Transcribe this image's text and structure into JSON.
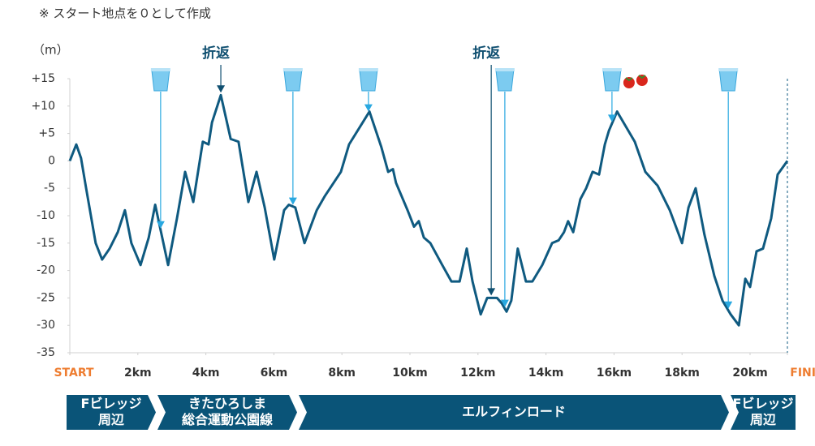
{
  "chart_data": {
    "type": "line",
    "note": "※ スタート地点を０として作成",
    "y_label": "（m）",
    "color": "#0f5a80",
    "x": [
      0,
      0.19,
      0.33,
      0.48,
      0.62,
      0.76,
      0.95,
      1.17,
      1.41,
      1.62,
      1.81,
      2.08,
      2.32,
      2.51,
      2.7,
      2.89,
      3.15,
      3.39,
      3.63,
      3.91,
      4.08,
      4.18,
      4.44,
      4.73,
      4.96,
      5.25,
      5.49,
      5.73,
      6.01,
      6.3,
      6.44,
      6.63,
      6.9,
      7.26,
      7.49,
      7.97,
      8.21,
      8.81,
      9.16,
      9.36,
      9.5,
      9.59,
      9.93,
      10.12,
      10.26,
      10.41,
      10.6,
      10.95,
      11.22,
      11.46,
      11.67,
      11.84,
      12.08,
      12.27,
      12.56,
      12.7,
      12.84,
      12.98,
      13.17,
      13.41,
      13.6,
      13.89,
      14.18,
      14.37,
      14.53,
      14.65,
      14.8,
      15.01,
      15.18,
      15.37,
      15.56,
      15.73,
      15.85,
      16.09,
      16.61,
      16.92,
      17.28,
      17.64,
      18,
      18.19,
      18.4,
      18.66,
      18.95,
      19.19,
      19.43,
      19.67,
      19.86,
      20,
      20.19,
      20.38,
      20.62,
      20.81,
      21.0975
    ],
    "values": [
      0,
      3,
      0.5,
      -5,
      -10,
      -15,
      -18,
      -16,
      -13,
      -9,
      -15,
      -19,
      -14,
      -8,
      -13.5,
      -19,
      -10.5,
      -2,
      -7.5,
      3.5,
      3,
      7,
      12,
      4,
      3.5,
      -7.5,
      -2,
      -8.5,
      -18,
      -9,
      -8,
      -8.5,
      -15,
      -9,
      -6.5,
      -2,
      3,
      9,
      2.5,
      -2,
      -1.5,
      -4,
      -9,
      -12,
      -11,
      -14,
      -15,
      -19,
      -22,
      -22,
      -16,
      -22,
      -28,
      -25,
      -25,
      -26,
      -27.5,
      -25.5,
      -16,
      -22,
      -22,
      -19,
      -15,
      -14.5,
      -13,
      -11,
      -13,
      -7,
      -5,
      -2,
      -2.5,
      3,
      5.5,
      9,
      3.5,
      -2,
      -4.5,
      -9,
      -15,
      -8.5,
      -5,
      -13.5,
      -21,
      -25.5,
      -28,
      -30,
      -21.5,
      -23,
      -16.5,
      -16,
      -10.5,
      -2.5,
      0
    ],
    "xlim": [
      0,
      21.0975
    ],
    "ylim": [
      -35,
      15
    ],
    "yticks": [
      {
        "value": 15,
        "label": "+15"
      },
      {
        "value": 10,
        "label": "+10"
      },
      {
        "value": 5,
        "label": "+5"
      },
      0,
      -5,
      -10,
      -15,
      -20,
      -25,
      -30,
      -35
    ],
    "xticks": [
      {
        "value": 0,
        "label": "START"
      },
      {
        "value": 2,
        "label": "2km"
      },
      {
        "value": 4,
        "label": "4km"
      },
      {
        "value": 6,
        "label": "6km"
      },
      {
        "value": 8,
        "label": "8km"
      },
      {
        "value": 10,
        "label": "10km"
      },
      {
        "value": 12,
        "label": "12km"
      },
      {
        "value": 14,
        "label": "14km"
      },
      {
        "value": 16,
        "label": "16km"
      },
      {
        "value": 18,
        "label": "18km"
      },
      {
        "value": 20,
        "label": "20km"
      },
      {
        "value": 21.0975,
        "label": "FINISH"
      }
    ],
    "water_stations": [
      2.67,
      6.56,
      8.78,
      12.79,
      15.94,
      19.36
    ],
    "tomato_station": 15.94,
    "turnarounds": [
      {
        "label": "折返",
        "x": 4.44
      },
      {
        "label": "折返",
        "x": 12.39
      }
    ],
    "sections": [
      {
        "lines": [
          "Fビレッジ",
          "周辺"
        ]
      },
      {
        "lines": [
          "きたひろしま",
          "総合運動公園線"
        ]
      },
      {
        "lines": [
          "エルフィンロード"
        ]
      },
      {
        "lines": [
          "Fビレッジ",
          "周辺"
        ]
      }
    ]
  }
}
